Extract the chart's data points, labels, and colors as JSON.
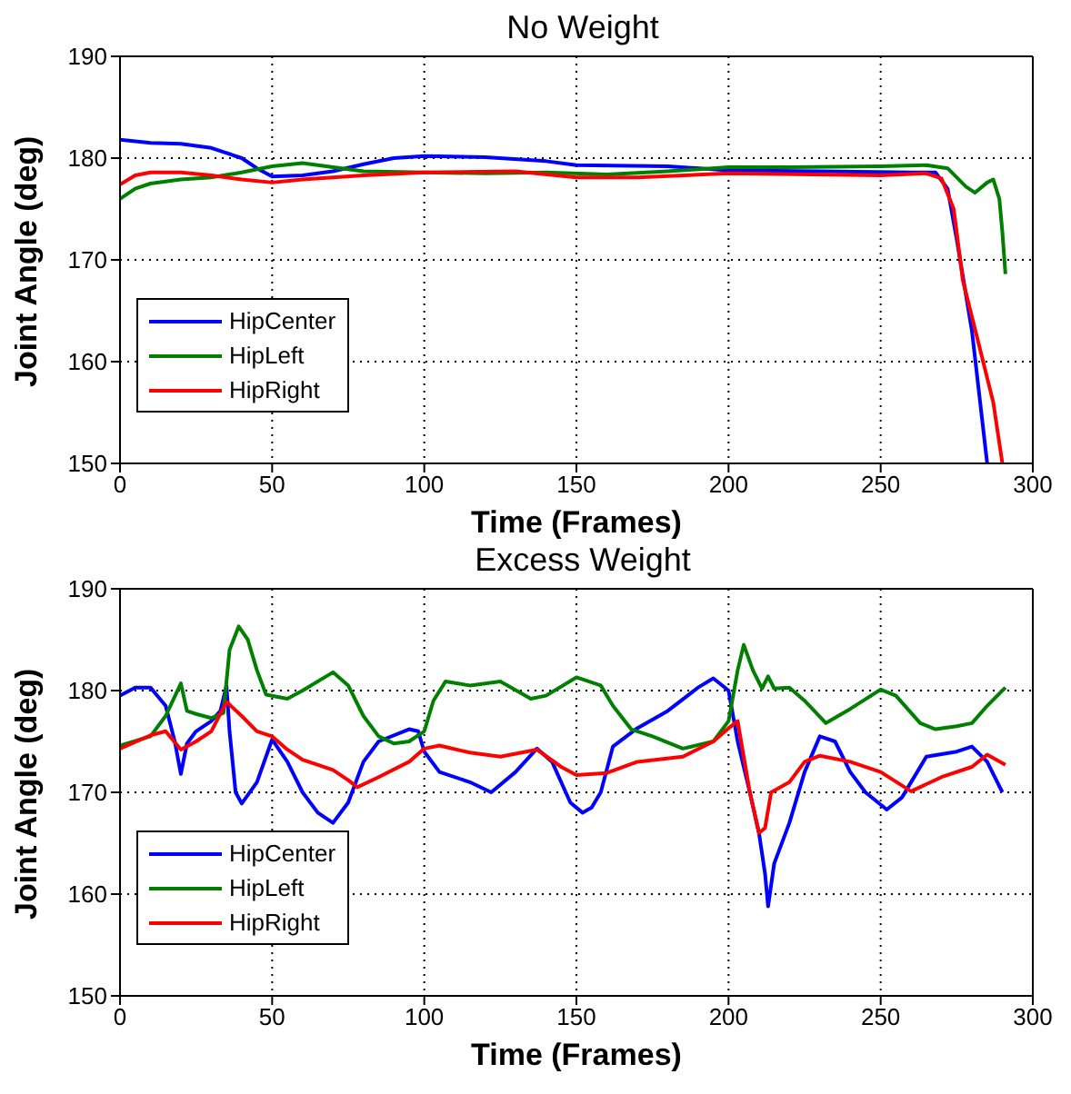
{
  "chart_data": [
    {
      "type": "line",
      "title": "No Weight",
      "xlabel": "Time (Frames)",
      "ylabel": "Joint Angle (deg)",
      "xlim": [
        0,
        300
      ],
      "xticks": [
        0,
        50,
        100,
        150,
        200,
        250,
        300
      ],
      "ylim": [
        150,
        190
      ],
      "yticks": [
        150,
        160,
        170,
        180,
        190
      ],
      "grid": true,
      "legend": "bottom left",
      "line_style": "solid",
      "marker": "none",
      "series": [
        {
          "name": "HipCenter",
          "color": "#0000ff",
          "x": [
            0,
            10,
            20,
            30,
            40,
            45,
            50,
            60,
            70,
            80,
            90,
            100,
            120,
            140,
            150,
            180,
            200,
            230,
            260,
            268,
            272,
            275,
            280,
            285
          ],
          "values": [
            181.8,
            181.5,
            181.4,
            181.0,
            180.0,
            179.0,
            178.2,
            178.3,
            178.7,
            179.4,
            180.0,
            180.2,
            180.1,
            179.7,
            179.3,
            179.2,
            178.8,
            178.7,
            178.6,
            178.6,
            177,
            172,
            163,
            150
          ]
        },
        {
          "name": "HipLeft",
          "color": "#008000",
          "x": [
            0,
            5,
            10,
            20,
            30,
            40,
            50,
            60,
            70,
            80,
            100,
            120,
            140,
            160,
            180,
            200,
            220,
            250,
            265,
            272,
            278,
            281,
            285,
            287,
            289,
            290,
            291
          ],
          "values": [
            176.0,
            177.0,
            177.5,
            177.9,
            178.1,
            178.6,
            179.2,
            179.5,
            179.1,
            178.7,
            178.6,
            178.5,
            178.6,
            178.4,
            178.7,
            179.1,
            179.1,
            179.2,
            179.3,
            179.0,
            177.2,
            176.6,
            177.6,
            177.9,
            176.0,
            172.7,
            168.6
          ]
        },
        {
          "name": "HipRight",
          "color": "#ff0000",
          "x": [
            0,
            5,
            10,
            20,
            30,
            40,
            50,
            60,
            70,
            80,
            100,
            130,
            150,
            170,
            200,
            250,
            265,
            270,
            274,
            277,
            282,
            287,
            290
          ],
          "values": [
            177.4,
            178.3,
            178.6,
            178.6,
            178.3,
            177.9,
            177.6,
            177.9,
            178.1,
            178.3,
            178.6,
            178.7,
            178.1,
            178.1,
            178.5,
            178.3,
            178.5,
            178.0,
            175,
            168,
            162,
            156,
            150
          ]
        }
      ]
    },
    {
      "type": "line",
      "title": "Excess Weight",
      "xlabel": "Time (Frames)",
      "ylabel": "Joint Angle (deg)",
      "xlim": [
        0,
        300
      ],
      "xticks": [
        0,
        50,
        100,
        150,
        200,
        250,
        300
      ],
      "ylim": [
        150,
        190
      ],
      "yticks": [
        150,
        160,
        170,
        180,
        190
      ],
      "grid": true,
      "legend": "bottom left",
      "line_style": "solid",
      "marker": "none",
      "series": [
        {
          "name": "HipCenter",
          "color": "#0000ff",
          "x": [
            0,
            5,
            10,
            15,
            18,
            20,
            22,
            25,
            30,
            33,
            35,
            36,
            38,
            40,
            45,
            50,
            55,
            60,
            65,
            70,
            75,
            80,
            85,
            95,
            98,
            100,
            105,
            115,
            122,
            130,
            137,
            142,
            148,
            152,
            155,
            158,
            162,
            170,
            180,
            190,
            195,
            200,
            203,
            207,
            210,
            212,
            213,
            215,
            220,
            225,
            230,
            235,
            240,
            245,
            252,
            257,
            265,
            275,
            280,
            285,
            290
          ],
          "values": [
            179.5,
            180.3,
            180.3,
            178.5,
            175,
            171.8,
            174.8,
            176,
            177,
            178,
            180.5,
            176,
            170,
            168.9,
            171,
            175.2,
            173,
            170,
            168,
            167,
            169,
            173,
            175,
            176.2,
            176,
            174,
            172,
            171,
            170,
            172,
            174.3,
            173,
            169,
            168,
            168.5,
            170,
            174.5,
            176.3,
            178,
            180.3,
            181.2,
            180,
            175,
            170,
            166,
            162,
            158.8,
            163,
            167,
            172,
            175.5,
            175,
            172,
            170,
            168.3,
            169.5,
            173.5,
            174,
            174.5,
            173,
            170
          ]
        },
        {
          "name": "HipLeft",
          "color": "#008000",
          "x": [
            0,
            10,
            15,
            20,
            22,
            25,
            30,
            34,
            36,
            39,
            42,
            45,
            48,
            55,
            60,
            70,
            75,
            80,
            85,
            90,
            95,
            100,
            103,
            107,
            115,
            125,
            135,
            140,
            150,
            158,
            162,
            168,
            175,
            185,
            195,
            200,
            203,
            205,
            208,
            211,
            213,
            215,
            220,
            225,
            232,
            240,
            250,
            255,
            263,
            268,
            275,
            280,
            285,
            291
          ],
          "values": [
            174.6,
            175.5,
            177.5,
            180.7,
            178,
            177.7,
            177.3,
            177.8,
            184,
            186.3,
            185,
            182,
            179.6,
            179.2,
            180,
            181.8,
            180.5,
            177.5,
            175.5,
            174.8,
            175,
            176,
            179,
            180.9,
            180.5,
            180.9,
            179.2,
            179.5,
            181.3,
            180.5,
            178.5,
            176.2,
            175.5,
            174.3,
            175,
            177,
            182,
            184.5,
            182,
            180.2,
            181.4,
            180.2,
            180.3,
            179,
            176.8,
            178.2,
            180.1,
            179.5,
            176.8,
            176.2,
            176.5,
            176.8,
            178.5,
            180.3
          ]
        },
        {
          "name": "HipRight",
          "color": "#ff0000",
          "x": [
            0,
            10,
            15,
            20,
            25,
            30,
            35,
            40,
            45,
            50,
            55,
            60,
            70,
            75,
            78,
            85,
            95,
            100,
            105,
            115,
            125,
            137,
            145,
            150,
            160,
            170,
            185,
            195,
            200,
            203,
            207,
            210,
            212,
            214,
            220,
            225,
            230,
            240,
            250,
            260,
            270,
            280,
            285,
            291
          ],
          "values": [
            174.3,
            175.6,
            176,
            174.2,
            175,
            176,
            178.9,
            177.5,
            176,
            175.5,
            174.2,
            173.2,
            172.2,
            171.2,
            170.5,
            171.5,
            173,
            174.3,
            174.6,
            173.9,
            173.5,
            174.2,
            172.5,
            171.7,
            171.9,
            173,
            173.5,
            175,
            176.3,
            177,
            170,
            166,
            166.5,
            170,
            171,
            173,
            173.6,
            173,
            172,
            170.1,
            171.5,
            172.5,
            173.7,
            172.7
          ]
        }
      ]
    }
  ]
}
